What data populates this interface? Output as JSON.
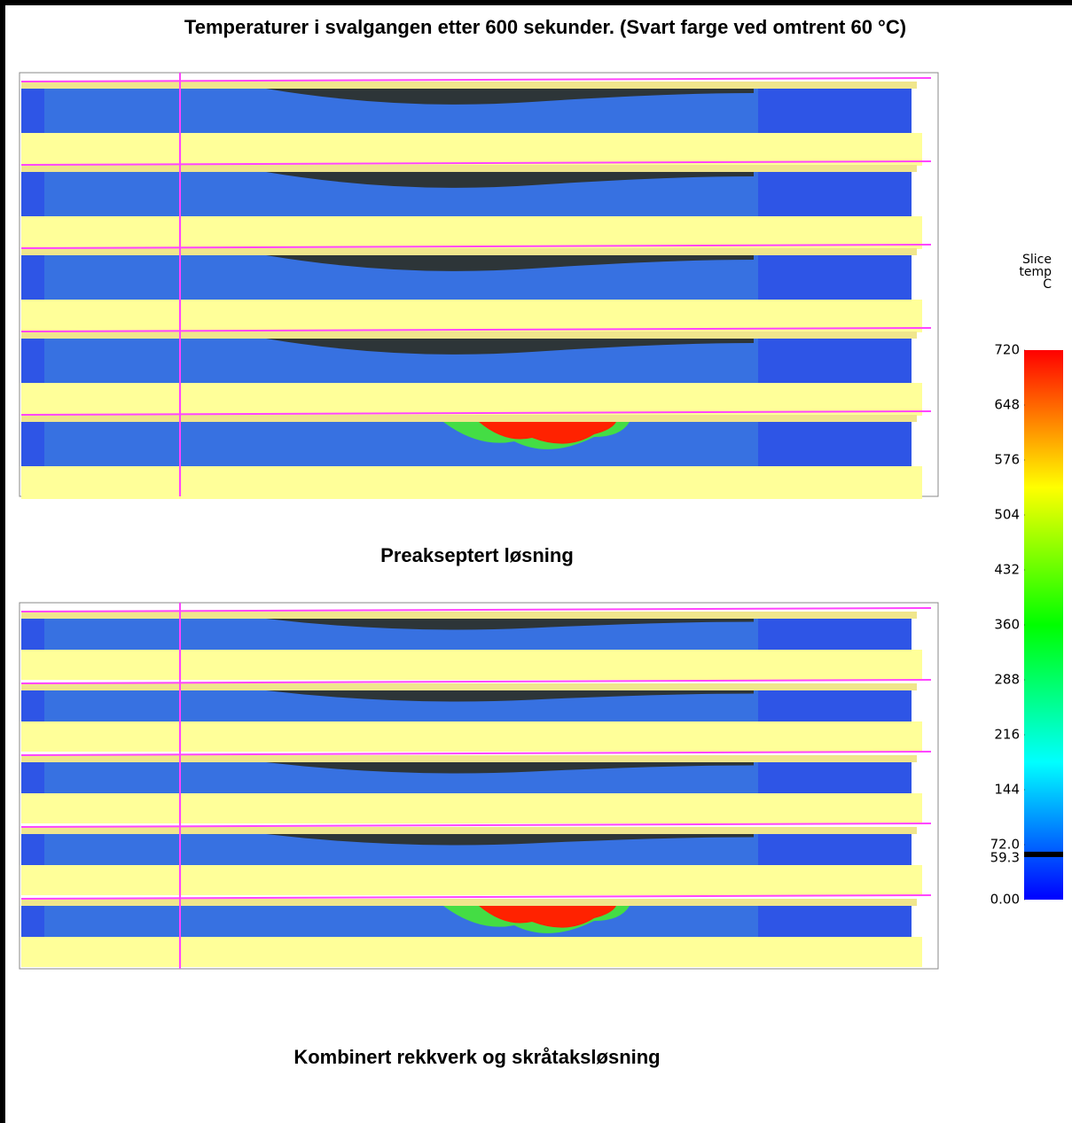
{
  "title": "Temperaturer i svalgangen etter 600 sekunder. (Svart farge ved omtrent 60 °C)",
  "panels": [
    {
      "caption": "Preakseptert løsning"
    },
    {
      "caption": "Kombinert rekkverk og skråtaksløsning"
    }
  ],
  "colorbar": {
    "label": [
      "Slice",
      "temp",
      "C"
    ],
    "range": [
      0,
      720
    ],
    "ticks": [
      720,
      648,
      576,
      504,
      432,
      360,
      288,
      216,
      144,
      {
        "value": 72,
        "label": "72.0"
      },
      {
        "value": 0,
        "label": "0.00"
      }
    ],
    "marker": 59.3
  }
}
